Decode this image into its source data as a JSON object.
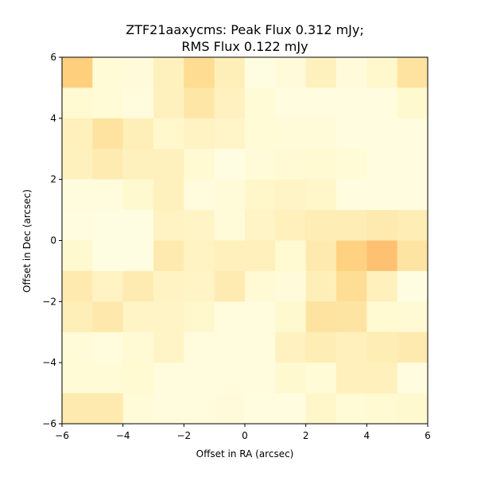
{
  "chart_data": {
    "type": "heatmap",
    "title_line1": "ZTF21aaxycms: Peak Flux 0.312 mJy;",
    "title_line2": "RMS Flux 0.122 mJy",
    "xlabel": "Offset in RA (arcsec)",
    "ylabel": "Offset in Dec (arcsec)",
    "xlim": [
      -6,
      6
    ],
    "ylim": [
      -6,
      6
    ],
    "x_ticks": [
      -6,
      -4,
      -2,
      0,
      2,
      4,
      6
    ],
    "y_ticks": [
      -6,
      -4,
      -2,
      0,
      2,
      4,
      6
    ],
    "x_tick_labels": [
      "−6",
      "−4",
      "−2",
      "0",
      "2",
      "4",
      "6"
    ],
    "y_tick_labels": [
      "−6",
      "−4",
      "−2",
      "0",
      "2",
      "4",
      "6"
    ],
    "grid": false,
    "legend": "none",
    "colormap": "YlOrBr",
    "cell_size_arcsec": 1,
    "pixel_alpha": 0.7,
    "row_order": "top-to-bottom (Dec +6 to -6)",
    "values_relative": [
      [
        0.4,
        0.1,
        0.08,
        0.2,
        0.34,
        0.22,
        0.05,
        0.08,
        0.2,
        0.08,
        0.14,
        0.3
      ],
      [
        0.12,
        0.1,
        0.07,
        0.2,
        0.28,
        0.19,
        0.1,
        0.06,
        0.06,
        0.06,
        0.06,
        0.13
      ],
      [
        0.21,
        0.3,
        0.22,
        0.14,
        0.18,
        0.16,
        0.1,
        0.09,
        0.09,
        0.06,
        0.06,
        0.06
      ],
      [
        0.2,
        0.25,
        0.2,
        0.2,
        0.12,
        0.05,
        0.09,
        0.11,
        0.12,
        0.1,
        0.06,
        0.06
      ],
      [
        0.07,
        0.07,
        0.13,
        0.2,
        0.07,
        0.09,
        0.15,
        0.17,
        0.15,
        0.06,
        0.06,
        0.06
      ],
      [
        0.06,
        0.05,
        0.05,
        0.18,
        0.17,
        0.09,
        0.17,
        0.21,
        0.24,
        0.24,
        0.26,
        0.24
      ],
      [
        0.13,
        0.05,
        0.05,
        0.26,
        0.18,
        0.21,
        0.21,
        0.12,
        0.26,
        0.39,
        0.46,
        0.29
      ],
      [
        0.26,
        0.18,
        0.25,
        0.18,
        0.17,
        0.25,
        0.11,
        0.08,
        0.22,
        0.33,
        0.21,
        0.05
      ],
      [
        0.23,
        0.27,
        0.17,
        0.17,
        0.14,
        0.07,
        0.07,
        0.13,
        0.3,
        0.29,
        0.12,
        0.11
      ],
      [
        0.09,
        0.07,
        0.11,
        0.17,
        0.07,
        0.07,
        0.07,
        0.19,
        0.24,
        0.21,
        0.24,
        0.26
      ],
      [
        0.1,
        0.1,
        0.12,
        0.07,
        0.07,
        0.07,
        0.07,
        0.13,
        0.1,
        0.21,
        0.21,
        0.06
      ],
      [
        0.26,
        0.26,
        0.09,
        0.07,
        0.07,
        0.08,
        0.06,
        0.06,
        0.15,
        0.1,
        0.12,
        0.13
      ]
    ]
  }
}
